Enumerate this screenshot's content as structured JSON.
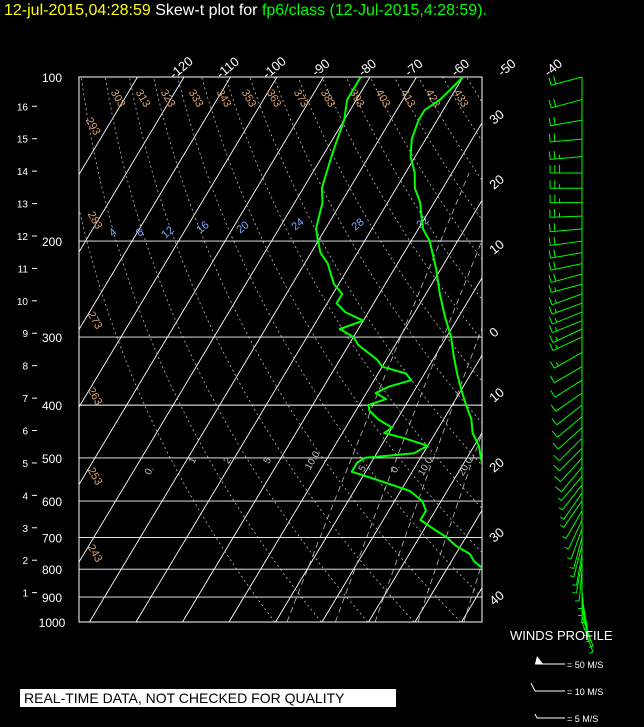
{
  "title": {
    "timestamp": "12-jul-2015,04:28:59",
    "prefix": "Skew-t plot for",
    "source": "fp6/class",
    "detail": "(12-Jul-2015,4:28:59)."
  },
  "disclaimer": "REAL-TIME DATA, NOT CHECKED FOR QUALITY",
  "colors": {
    "background": "#000000",
    "grid": "#ffffff",
    "temperature": "#00ff00",
    "dewpoint": "#00ff00",
    "wind": "#00ff00",
    "theta_labels": "#d8a070",
    "mixing_labels": "#7fa8ff",
    "title_timestamp": "#ffff00"
  },
  "chart_data": {
    "type": "line",
    "subtype": "skew-t log-p",
    "title": "",
    "pressure_axis": {
      "ticks": [
        100,
        200,
        300,
        400,
        500,
        600,
        700,
        800,
        900,
        1000
      ],
      "scale": "log",
      "range": [
        100,
        1000
      ]
    },
    "height_axis": {
      "ticks": [
        1,
        2,
        3,
        4,
        5,
        6,
        7,
        8,
        9,
        10,
        11,
        12,
        13,
        14,
        15,
        16
      ]
    },
    "temperature_axis": {
      "top_labels": [
        -120,
        -110,
        -100,
        -90,
        -80,
        -70,
        -60,
        -50,
        -40
      ],
      "right_labels": [
        30,
        20,
        10,
        0,
        10,
        20,
        30,
        40
      ]
    },
    "theta_labels": [
      "293",
      "303",
      "313",
      "323",
      "333",
      "343",
      "353",
      "363",
      "373",
      "383",
      "393",
      "403",
      "413",
      "423",
      "433",
      "283",
      "273",
      "263",
      "253",
      "243"
    ],
    "mixing_ratio_labels": [
      "4",
      "8",
      "12",
      "16",
      "20",
      "24",
      "28",
      "32"
    ],
    "lower_mixing_labels": [
      "0.",
      "1",
      "2",
      "5",
      "10.0",
      "5",
      "0.",
      "10.0",
      "20.0"
    ],
    "series": [
      {
        "name": "",
        "role": "temperature",
        "points": [
          [
            1000,
            22
          ],
          [
            975,
            21
          ],
          [
            950,
            21
          ],
          [
            925,
            19
          ],
          [
            900,
            18
          ],
          [
            880,
            18
          ],
          [
            860,
            17
          ],
          [
            850,
            17
          ],
          [
            830,
            15
          ],
          [
            800,
            15
          ],
          [
            775,
            13
          ],
          [
            750,
            11
          ],
          [
            725,
            10
          ],
          [
            700,
            9
          ],
          [
            675,
            7
          ],
          [
            650,
            6
          ],
          [
            625,
            3
          ],
          [
            600,
            1
          ],
          [
            575,
            -1
          ],
          [
            550,
            -3
          ],
          [
            525,
            -5
          ],
          [
            500,
            -7
          ],
          [
            475,
            -9
          ],
          [
            450,
            -12
          ],
          [
            425,
            -14
          ],
          [
            400,
            -17
          ],
          [
            375,
            -20
          ],
          [
            350,
            -23
          ],
          [
            325,
            -26
          ],
          [
            300,
            -29
          ],
          [
            275,
            -33
          ],
          [
            250,
            -37
          ],
          [
            225,
            -41
          ],
          [
            200,
            -46
          ],
          [
            190,
            -49
          ],
          [
            180,
            -51
          ],
          [
            170,
            -53
          ],
          [
            160,
            -56
          ],
          [
            150,
            -58
          ],
          [
            140,
            -61
          ],
          [
            130,
            -63
          ],
          [
            120,
            -64
          ],
          [
            115,
            -64
          ],
          [
            110,
            -62
          ],
          [
            105,
            -61
          ],
          [
            100,
            -60
          ]
        ]
      },
      {
        "name": "",
        "role": "dewpoint",
        "points": [
          [
            1000,
            16
          ],
          [
            950,
            15
          ],
          [
            900,
            12
          ],
          [
            880,
            11
          ],
          [
            850,
            14
          ],
          [
            825,
            9
          ],
          [
            800,
            8
          ],
          [
            775,
            5
          ],
          [
            750,
            3
          ],
          [
            725,
            -1
          ],
          [
            700,
            -4
          ],
          [
            675,
            -8
          ],
          [
            650,
            -12
          ],
          [
            625,
            -12
          ],
          [
            600,
            -14
          ],
          [
            575,
            -18
          ],
          [
            550,
            -26
          ],
          [
            530,
            -33
          ],
          [
            510,
            -33
          ],
          [
            500,
            -32
          ],
          [
            490,
            -22
          ],
          [
            475,
            -20
          ],
          [
            460,
            -26
          ],
          [
            450,
            -31
          ],
          [
            440,
            -30
          ],
          [
            425,
            -34
          ],
          [
            410,
            -37
          ],
          [
            400,
            -38
          ],
          [
            390,
            -35
          ],
          [
            380,
            -38
          ],
          [
            370,
            -36
          ],
          [
            360,
            -32
          ],
          [
            350,
            -34
          ],
          [
            340,
            -40
          ],
          [
            330,
            -42
          ],
          [
            320,
            -45
          ],
          [
            310,
            -48
          ],
          [
            300,
            -50
          ],
          [
            290,
            -54
          ],
          [
            280,
            -50
          ],
          [
            270,
            -55
          ],
          [
            260,
            -58
          ],
          [
            250,
            -58
          ],
          [
            240,
            -61
          ],
          [
            230,
            -63
          ],
          [
            220,
            -65
          ],
          [
            210,
            -68
          ],
          [
            200,
            -70
          ],
          [
            190,
            -72
          ],
          [
            180,
            -73
          ],
          [
            170,
            -74
          ],
          [
            160,
            -76
          ],
          [
            150,
            -77
          ],
          [
            140,
            -78
          ],
          [
            130,
            -79
          ],
          [
            120,
            -80
          ],
          [
            110,
            -82
          ],
          [
            100,
            -82
          ]
        ]
      }
    ],
    "winds": {
      "label": "WINDS PROFILE",
      "legend": [
        "= 50 M/S",
        "= 10 M/S",
        "= 5 M/S"
      ],
      "levels": [
        [
          100,
          255,
          18
        ],
        [
          110,
          255,
          20
        ],
        [
          120,
          260,
          22
        ],
        [
          130,
          265,
          22
        ],
        [
          140,
          265,
          25
        ],
        [
          150,
          270,
          28
        ],
        [
          160,
          270,
          26
        ],
        [
          170,
          270,
          25
        ],
        [
          180,
          268,
          25
        ],
        [
          190,
          265,
          22
        ],
        [
          200,
          262,
          22
        ],
        [
          210,
          260,
          20
        ],
        [
          220,
          258,
          18
        ],
        [
          230,
          255,
          18
        ],
        [
          240,
          255,
          17
        ],
        [
          250,
          250,
          16
        ],
        [
          260,
          250,
          16
        ],
        [
          270,
          248,
          15
        ],
        [
          280,
          248,
          15
        ],
        [
          290,
          245,
          14
        ],
        [
          300,
          245,
          13
        ],
        [
          320,
          240,
          13
        ],
        [
          340,
          240,
          12
        ],
        [
          360,
          238,
          12
        ],
        [
          380,
          235,
          11
        ],
        [
          400,
          232,
          11
        ],
        [
          420,
          230,
          10
        ],
        [
          440,
          228,
          10
        ],
        [
          460,
          225,
          9
        ],
        [
          480,
          225,
          9
        ],
        [
          500,
          222,
          8
        ],
        [
          520,
          220,
          8
        ],
        [
          540,
          220,
          7
        ],
        [
          560,
          218,
          7
        ],
        [
          580,
          215,
          6
        ],
        [
          600,
          215,
          6
        ],
        [
          625,
          210,
          5
        ],
        [
          650,
          205,
          5
        ],
        [
          675,
          200,
          5
        ],
        [
          700,
          195,
          5
        ],
        [
          725,
          195,
          5
        ],
        [
          750,
          190,
          5
        ],
        [
          775,
          190,
          6
        ],
        [
          800,
          185,
          6
        ],
        [
          825,
          180,
          7
        ],
        [
          850,
          180,
          7
        ],
        [
          875,
          175,
          6
        ],
        [
          900,
          170,
          6
        ],
        [
          925,
          170,
          5
        ],
        [
          950,
          165,
          5
        ],
        [
          975,
          160,
          4
        ],
        [
          1000,
          160,
          3
        ]
      ]
    }
  }
}
